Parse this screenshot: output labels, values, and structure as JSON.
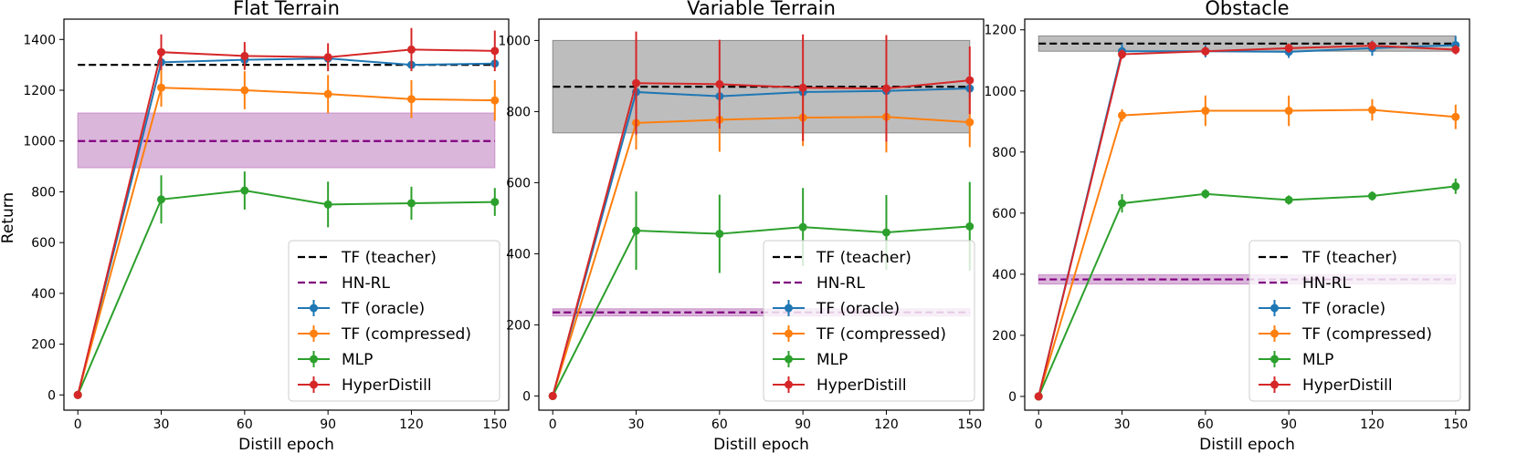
{
  "figure": {
    "ylabel_shared": "Return"
  },
  "legend_entries": [
    "TF (teacher)",
    "HN-RL",
    "TF (oracle)",
    "TF (compressed)",
    "MLP",
    "HyperDistill"
  ],
  "colors": {
    "teacher": "#000000",
    "hnrl": "#800080",
    "hnrl_band": "#dbb6db",
    "teacher_band": "#bdbdbd",
    "oracle": "#1f77b4",
    "compressed": "#ff7f0e",
    "mlp": "#2ca02c",
    "hyperdistill": "#d62728"
  },
  "chart_data": [
    {
      "type": "line",
      "title": "Flat Terrain",
      "xlabel": "Distill epoch",
      "ylabel": "Return",
      "x": [
        0,
        30,
        60,
        90,
        120,
        150
      ],
      "xlim": [
        -5,
        155
      ],
      "ylim": [
        -60,
        1480
      ],
      "yticks": [
        0,
        200,
        400,
        600,
        800,
        1000,
        1200,
        1400
      ],
      "legend_position": "lower-right",
      "teacher": {
        "value": 1300,
        "band": null
      },
      "hnrl": {
        "value": 1000,
        "band": [
          895,
          1110
        ]
      },
      "series": [
        {
          "key": "oracle",
          "name": "TF (oracle)",
          "values": [
            0,
            1310,
            1320,
            1325,
            1300,
            1305
          ],
          "err": [
            0,
            20,
            20,
            20,
            15,
            15
          ]
        },
        {
          "key": "compressed",
          "name": "TF (compressed)",
          "values": [
            0,
            1210,
            1200,
            1185,
            1165,
            1160
          ],
          "err": [
            0,
            75,
            75,
            75,
            75,
            80
          ]
        },
        {
          "key": "mlp",
          "name": "MLP",
          "values": [
            0,
            770,
            805,
            750,
            755,
            760
          ],
          "err": [
            0,
            95,
            75,
            90,
            65,
            55
          ]
        },
        {
          "key": "hyperdistill",
          "name": "HyperDistill",
          "values": [
            0,
            1350,
            1335,
            1330,
            1360,
            1355
          ],
          "err": [
            0,
            70,
            55,
            55,
            85,
            80
          ]
        }
      ]
    },
    {
      "type": "line",
      "title": "Variable Terrain",
      "xlabel": "Distill epoch",
      "ylabel": "",
      "x": [
        0,
        30,
        60,
        90,
        120,
        150
      ],
      "xlim": [
        -5,
        155
      ],
      "ylim": [
        -40,
        1060
      ],
      "yticks": [
        0,
        200,
        400,
        600,
        800,
        1000
      ],
      "legend_position": "lower-right",
      "teacher": {
        "value": 870,
        "band": [
          740,
          1000
        ]
      },
      "hnrl": {
        "value": 235,
        "band": [
          225,
          245
        ]
      },
      "series": [
        {
          "key": "oracle",
          "name": "TF (oracle)",
          "values": [
            0,
            855,
            843,
            855,
            858,
            865
          ],
          "err": [
            0,
            30,
            30,
            25,
            25,
            25
          ]
        },
        {
          "key": "compressed",
          "name": "TF (compressed)",
          "values": [
            0,
            768,
            777,
            783,
            785,
            770
          ],
          "err": [
            0,
            75,
            90,
            80,
            100,
            70
          ]
        },
        {
          "key": "mlp",
          "name": "MLP",
          "values": [
            0,
            465,
            456,
            475,
            460,
            477
          ],
          "err": [
            0,
            110,
            110,
            110,
            105,
            125
          ]
        },
        {
          "key": "hyperdistill",
          "name": "HyperDistill",
          "values": [
            0,
            880,
            877,
            867,
            865,
            888
          ],
          "err": [
            0,
            145,
            125,
            150,
            150,
            95
          ]
        }
      ]
    },
    {
      "type": "line",
      "title": "Obstacle",
      "xlabel": "Distill epoch",
      "ylabel": "",
      "x": [
        0,
        30,
        60,
        90,
        120,
        150
      ],
      "xlim": [
        -5,
        155
      ],
      "ylim": [
        -45,
        1235
      ],
      "yticks": [
        0,
        200,
        400,
        600,
        800,
        1000,
        1200
      ],
      "legend_position": "lower-right",
      "teacher": {
        "value": 1155,
        "band": [
          1130,
          1180
        ]
      },
      "hnrl": {
        "value": 383,
        "band": [
          368,
          398
        ]
      },
      "series": [
        {
          "key": "oracle",
          "name": "TF (oracle)",
          "values": [
            0,
            1130,
            1130,
            1128,
            1140,
            1150
          ],
          "err": [
            0,
            25,
            20,
            20,
            25,
            30
          ]
        },
        {
          "key": "compressed",
          "name": "TF (compressed)",
          "values": [
            0,
            920,
            935,
            935,
            938,
            915
          ],
          "err": [
            0,
            20,
            50,
            50,
            35,
            40
          ]
        },
        {
          "key": "mlp",
          "name": "MLP",
          "values": [
            0,
            632,
            663,
            643,
            656,
            688
          ],
          "err": [
            0,
            30,
            15,
            15,
            15,
            25
          ]
        },
        {
          "key": "hyperdistill",
          "name": "HyperDistill",
          "values": [
            0,
            1120,
            1130,
            1140,
            1148,
            1135
          ],
          "err": [
            0,
            15,
            15,
            15,
            15,
            15
          ]
        }
      ]
    }
  ]
}
